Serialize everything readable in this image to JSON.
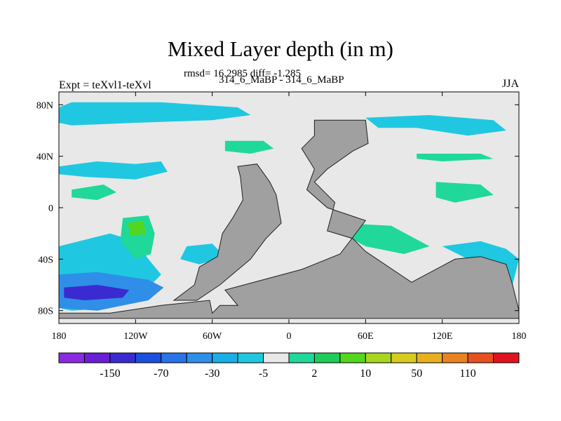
{
  "chart_data": {
    "type": "heatmap",
    "title": "Mixed Layer depth (in m)",
    "subtitle": "314_6_MaBP - 314_6_MaBP",
    "stats_text": "rmsd= 16.2985 diff= -1.285",
    "left_label": "Expt = teXvl1-teXvl",
    "right_label": "JJA",
    "x_ticks": [
      {
        "value": -180,
        "label": "180"
      },
      {
        "value": -120,
        "label": "120W"
      },
      {
        "value": -60,
        "label": "60W"
      },
      {
        "value": 0,
        "label": "0"
      },
      {
        "value": 60,
        "label": "60E"
      },
      {
        "value": 120,
        "label": "120E"
      },
      {
        "value": 180,
        "label": "180"
      }
    ],
    "y_ticks": [
      {
        "value": 80,
        "label": "80N"
      },
      {
        "value": 40,
        "label": "40N"
      },
      {
        "value": 0,
        "label": "0"
      },
      {
        "value": -40,
        "label": "40S"
      },
      {
        "value": -80,
        "label": "80S"
      }
    ],
    "xlim": [
      -180,
      180
    ],
    "ylim": [
      -90,
      90
    ],
    "colorbar": {
      "colors": [
        "#8a2be2",
        "#6a1fd6",
        "#3a2bd0",
        "#1a4fe0",
        "#2a73e8",
        "#2f8fe8",
        "#1aaee8",
        "#1fc8e0",
        "#e8e8e8",
        "#1fd89a",
        "#1fcc5a",
        "#52d61f",
        "#a8d61f",
        "#d6cc1f",
        "#e8b01f",
        "#e8841f",
        "#e8501f",
        "#e0141f"
      ],
      "labels": [
        {
          "label": "-150",
          "boundary": 2
        },
        {
          "label": "-70",
          "boundary": 4
        },
        {
          "label": "-30",
          "boundary": 6
        },
        {
          "label": "-5",
          "boundary": 8
        },
        {
          "label": "2",
          "boundary": 10
        },
        {
          "label": "10",
          "boundary": 12
        },
        {
          "label": "50",
          "boundary": 14
        },
        {
          "label": "110",
          "boundary": 16
        }
      ]
    },
    "land_color": "#a0a0a0",
    "background_color": "#e8e8e8",
    "anomaly_regions": [
      {
        "level": "-5",
        "color": "#1fc8e0",
        "points": [
          [
            -180,
            78
          ],
          [
            -170,
            82
          ],
          [
            -100,
            82
          ],
          [
            -40,
            78
          ],
          [
            -30,
            72
          ],
          [
            -60,
            68
          ],
          [
            -120,
            66
          ],
          [
            -170,
            64
          ],
          [
            -180,
            66
          ]
        ]
      },
      {
        "level": "-5",
        "color": "#1fc8e0",
        "points": [
          [
            -180,
            32
          ],
          [
            -150,
            36
          ],
          [
            -120,
            34
          ],
          [
            -100,
            36
          ],
          [
            -95,
            28
          ],
          [
            -120,
            22
          ],
          [
            -160,
            24
          ],
          [
            -180,
            26
          ]
        ]
      },
      {
        "level": "-5",
        "color": "#1fc8e0",
        "points": [
          [
            -180,
            -30
          ],
          [
            -140,
            -20
          ],
          [
            -120,
            -26
          ],
          [
            -110,
            -40
          ],
          [
            -100,
            -52
          ],
          [
            -110,
            -62
          ],
          [
            -140,
            -78
          ],
          [
            -170,
            -80
          ],
          [
            -180,
            -78
          ]
        ]
      },
      {
        "level": "-5",
        "color": "#1fc8e0",
        "points": [
          [
            -80,
            -30
          ],
          [
            -60,
            -28
          ],
          [
            -50,
            -38
          ],
          [
            -70,
            -44
          ],
          [
            -85,
            -40
          ]
        ]
      },
      {
        "level": "-5",
        "color": "#1fc8e0",
        "points": [
          [
            120,
            -30
          ],
          [
            150,
            -26
          ],
          [
            170,
            -32
          ],
          [
            180,
            -40
          ],
          [
            175,
            -60
          ],
          [
            160,
            -52
          ],
          [
            140,
            -40
          ]
        ]
      },
      {
        "level": "-5",
        "color": "#1fc8e0",
        "points": [
          [
            60,
            70
          ],
          [
            110,
            72
          ],
          [
            160,
            68
          ],
          [
            170,
            60
          ],
          [
            140,
            56
          ],
          [
            100,
            62
          ],
          [
            70,
            62
          ]
        ]
      },
      {
        "level": "-30",
        "color": "#2f8fe8",
        "points": [
          [
            -180,
            -52
          ],
          [
            -150,
            -50
          ],
          [
            -110,
            -56
          ],
          [
            -98,
            -62
          ],
          [
            -110,
            -72
          ],
          [
            -150,
            -80
          ],
          [
            -180,
            -78
          ]
        ]
      },
      {
        "level": "-70",
        "color": "#3a2bd0",
        "points": [
          [
            -176,
            -62
          ],
          [
            -150,
            -60
          ],
          [
            -125,
            -64
          ],
          [
            -130,
            -70
          ],
          [
            -160,
            -72
          ],
          [
            -176,
            -70
          ]
        ]
      },
      {
        "level": "2",
        "color": "#1fd89a",
        "points": [
          [
            -130,
            -8
          ],
          [
            -110,
            -6
          ],
          [
            -105,
            -20
          ],
          [
            -108,
            -36
          ],
          [
            -120,
            -40
          ],
          [
            -132,
            -26
          ]
        ]
      },
      {
        "level": "2",
        "color": "#1fd89a",
        "points": [
          [
            -170,
            14
          ],
          [
            -145,
            18
          ],
          [
            -135,
            12
          ],
          [
            -150,
            6
          ],
          [
            -170,
            8
          ]
        ]
      },
      {
        "level": "2",
        "color": "#1fd89a",
        "points": [
          [
            -50,
            52
          ],
          [
            -20,
            52
          ],
          [
            -12,
            46
          ],
          [
            -30,
            42
          ],
          [
            -50,
            44
          ]
        ]
      },
      {
        "level": "2",
        "color": "#1fd89a",
        "points": [
          [
            40,
            -12
          ],
          [
            80,
            -14
          ],
          [
            110,
            -30
          ],
          [
            90,
            -36
          ],
          [
            60,
            -30
          ],
          [
            45,
            -22
          ]
        ]
      },
      {
        "level": "2",
        "color": "#1fd89a",
        "points": [
          [
            115,
            20
          ],
          [
            150,
            18
          ],
          [
            160,
            10
          ],
          [
            130,
            4
          ],
          [
            115,
            8
          ]
        ]
      },
      {
        "level": "2",
        "color": "#1fd89a",
        "points": [
          [
            100,
            42
          ],
          [
            150,
            42
          ],
          [
            160,
            38
          ],
          [
            120,
            36
          ],
          [
            100,
            38
          ]
        ]
      },
      {
        "level": "10",
        "color": "#52d61f",
        "points": [
          [
            -126,
            -12
          ],
          [
            -114,
            -10
          ],
          [
            -112,
            -20
          ],
          [
            -124,
            -22
          ]
        ]
      }
    ],
    "land_masses": [
      {
        "name": "americas",
        "points": [
          [
            -40,
            32
          ],
          [
            -25,
            34
          ],
          [
            -15,
            20
          ],
          [
            -10,
            10
          ],
          [
            -6,
            -12
          ],
          [
            -18,
            -24
          ],
          [
            -30,
            -40
          ],
          [
            -54,
            -60
          ],
          [
            -72,
            -72
          ],
          [
            -90,
            -72
          ],
          [
            -74,
            -60
          ],
          [
            -70,
            -46
          ],
          [
            -56,
            -38
          ],
          [
            -52,
            -20
          ],
          [
            -44,
            -8
          ],
          [
            -36,
            6
          ],
          [
            -38,
            24
          ]
        ]
      },
      {
        "name": "afro-eurasia",
        "points": [
          [
            20,
            68
          ],
          [
            60,
            68
          ],
          [
            62,
            50
          ],
          [
            50,
            44
          ],
          [
            30,
            30
          ],
          [
            20,
            20
          ],
          [
            36,
            4
          ],
          [
            30,
            -18
          ],
          [
            50,
            -24
          ],
          [
            60,
            -34
          ],
          [
            96,
            -58
          ],
          [
            130,
            -40
          ],
          [
            150,
            -38
          ],
          [
            170,
            -44
          ],
          [
            175,
            -60
          ],
          [
            180,
            -80
          ],
          [
            180,
            -86
          ],
          [
            -180,
            -86
          ],
          [
            -180,
            -82
          ],
          [
            -140,
            -82
          ],
          [
            -100,
            -76
          ],
          [
            -62,
            -72
          ],
          [
            -60,
            -82
          ],
          [
            -54,
            -76
          ],
          [
            -40,
            -76
          ],
          [
            -50,
            -64
          ],
          [
            10,
            -48
          ],
          [
            40,
            -36
          ],
          [
            60,
            -10
          ],
          [
            30,
            0
          ],
          [
            14,
            14
          ],
          [
            20,
            30
          ],
          [
            10,
            46
          ],
          [
            20,
            56
          ]
        ]
      }
    ]
  }
}
